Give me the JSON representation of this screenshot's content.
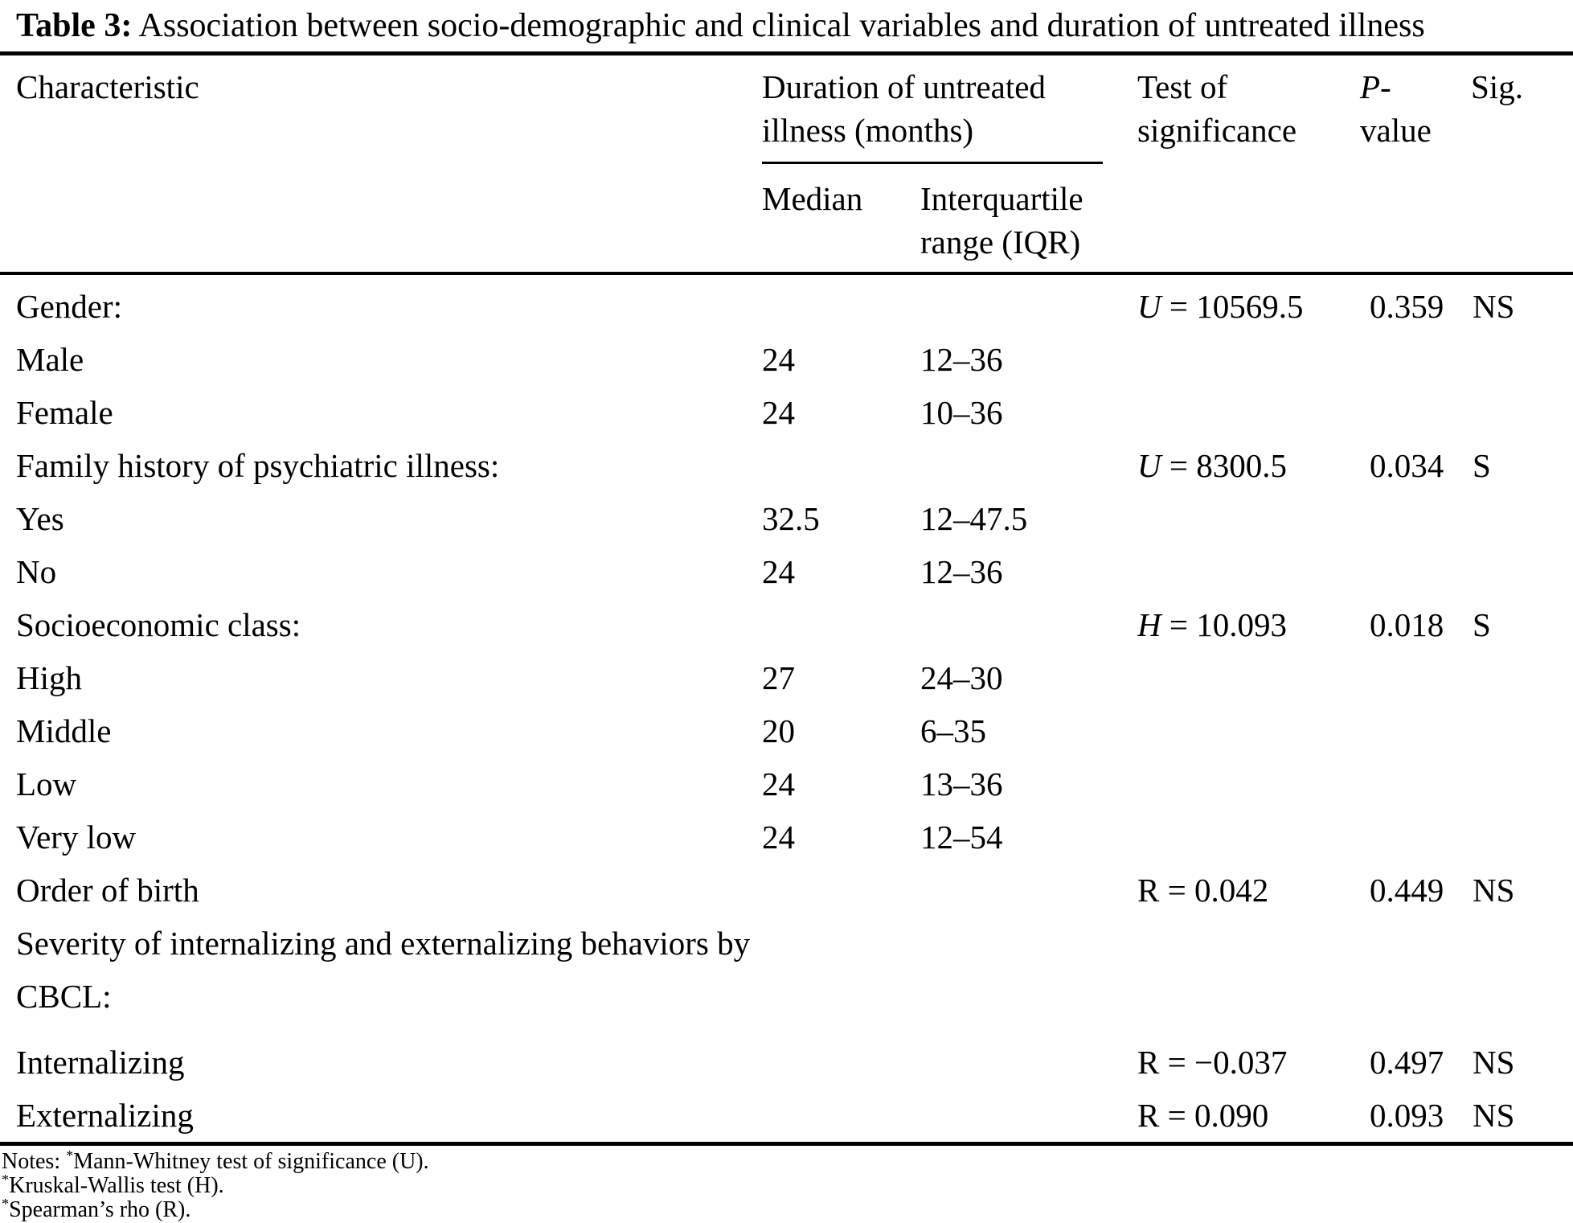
{
  "caption": {
    "label": "Table 3:",
    "text": "Association between socio-demographic and clinical variables and duration of untreated illness"
  },
  "table": {
    "headers": {
      "characteristic": "Characteristic",
      "duration_group": "Duration of untreated illness (months)",
      "median": "Median",
      "iqr": "Interquartile range (IQR)",
      "test": "Test of significance",
      "p_var": "P",
      "p_hyphen": "-",
      "p_word": "value",
      "sig": "Sig."
    },
    "rows": [
      {
        "label": "Gender:",
        "median": "",
        "iqr": "",
        "test_var": "U",
        "test_italic": true,
        "test_value": "10569.5",
        "p": "0.359",
        "sig": "NS",
        "tall": false
      },
      {
        "label": "Male",
        "median": "24",
        "iqr": "12–36",
        "test_var": "",
        "test_italic": false,
        "test_value": "",
        "p": "",
        "sig": "",
        "tall": false
      },
      {
        "label": "Female",
        "median": "24",
        "iqr": "10–36",
        "test_var": "",
        "test_italic": false,
        "test_value": "",
        "p": "",
        "sig": "",
        "tall": false
      },
      {
        "label": "Family history of psychiatric illness:",
        "median": "",
        "iqr": "",
        "test_var": "U",
        "test_italic": true,
        "test_value": "8300.5",
        "p": "0.034",
        "sig": "S",
        "tall": false
      },
      {
        "label": "Yes",
        "median": "32.5",
        "iqr": "12–47.5",
        "test_var": "",
        "test_italic": false,
        "test_value": "",
        "p": "",
        "sig": "",
        "tall": false
      },
      {
        "label": "No",
        "median": "24",
        "iqr": "12–36",
        "test_var": "",
        "test_italic": false,
        "test_value": "",
        "p": "",
        "sig": "",
        "tall": false
      },
      {
        "label": "Socioeconomic class:",
        "median": "",
        "iqr": "",
        "test_var": "H",
        "test_italic": true,
        "test_value": "10.093",
        "p": "0.018",
        "sig": "S",
        "tall": false
      },
      {
        "label": "High",
        "median": "27",
        "iqr": "24–30",
        "test_var": "",
        "test_italic": false,
        "test_value": "",
        "p": "",
        "sig": "",
        "tall": false
      },
      {
        "label": "Middle",
        "median": "20",
        "iqr": "6–35",
        "test_var": "",
        "test_italic": false,
        "test_value": "",
        "p": "",
        "sig": "",
        "tall": false
      },
      {
        "label": "Low",
        "median": "24",
        "iqr": "13–36",
        "test_var": "",
        "test_italic": false,
        "test_value": "",
        "p": "",
        "sig": "",
        "tall": false
      },
      {
        "label": "Very low",
        "median": "24",
        "iqr": "12–54",
        "test_var": "",
        "test_italic": false,
        "test_value": "",
        "p": "",
        "sig": "",
        "tall": false
      },
      {
        "label": "Order of birth",
        "median": "",
        "iqr": "",
        "test_var": "R",
        "test_italic": false,
        "test_value": "0.042",
        "p": "0.449",
        "sig": "NS",
        "tall": false
      },
      {
        "label": "Severity of internalizing and externalizing behaviors by CBCL:",
        "median": "",
        "iqr": "",
        "test_var": "",
        "test_italic": false,
        "test_value": "",
        "p": "",
        "sig": "",
        "tall": true
      },
      {
        "label": "Internalizing",
        "median": "",
        "iqr": "",
        "test_var": "R",
        "test_italic": false,
        "test_value": "−0.037",
        "p": "0.497",
        "sig": "NS",
        "tall": false
      },
      {
        "label": "Externalizing",
        "median": "",
        "iqr": "",
        "test_var": "R",
        "test_italic": false,
        "test_value": "0.090",
        "p": "0.093",
        "sig": "NS",
        "tall": false
      }
    ]
  },
  "notes": {
    "prefix": "Notes: ",
    "items": [
      {
        "marker": "*",
        "text": "Mann-Whitney test of significance (U)."
      },
      {
        "marker": "*",
        "text": "Kruskal-Wallis test (H)."
      },
      {
        "marker": "*",
        "text": "Spearman’s rho (R)."
      }
    ]
  },
  "colors": {
    "text": "#000000",
    "background": "#ffffff",
    "rule": "#000000"
  }
}
